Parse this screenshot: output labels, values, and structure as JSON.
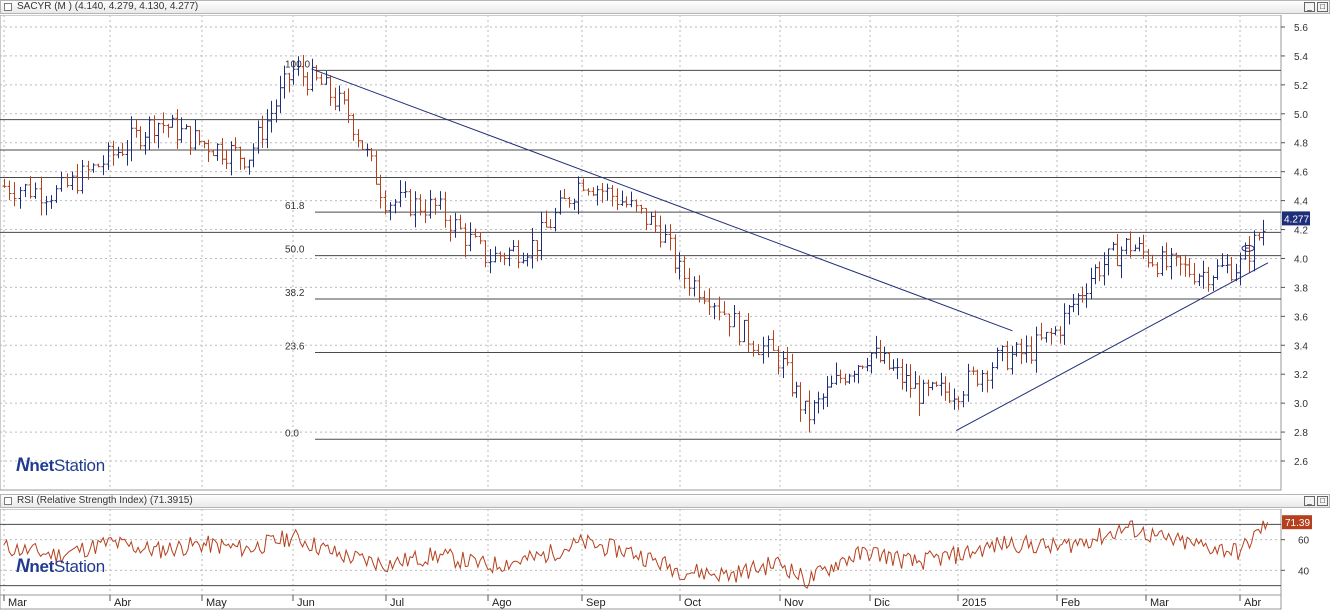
{
  "price_panel": {
    "title": "SACYR (M ) (4.140, 4.279, 4.130, 4.277)",
    "last_value": "4.277"
  },
  "rsi_panel": {
    "title": "RSI (Relative Strength Index) (71.3915)",
    "last_value": "71.39"
  },
  "branding": {
    "mark": "N",
    "bold": "net",
    "rest": "Station"
  },
  "window_buttons": {
    "minimize": "_",
    "maximize": "□"
  },
  "colors": {
    "up": "#1f2e7a",
    "down": "#b5401e",
    "line": "#1f2e7a",
    "rsi": "#b5401e",
    "grid": "#bbbbbb",
    "label_bg": "#1f2e7a"
  },
  "chart_data": [
    {
      "type": "bar",
      "subtype": "ohlc",
      "symbol": "SACYR",
      "ylim": [
        2.5,
        5.7
      ],
      "y_ticks": [
        2.6,
        2.8,
        3.0,
        3.2,
        3.4,
        3.6,
        3.8,
        4.0,
        4.2,
        4.4,
        4.6,
        4.8,
        5.0,
        5.2,
        5.4,
        5.6
      ],
      "months": [
        "Mar",
        "Abr",
        "May",
        "Jun",
        "Jul",
        "Ago",
        "Sep",
        "Oct",
        "Nov",
        "Dic",
        "2015",
        "Feb",
        "Mar",
        "Abr"
      ],
      "grid": true,
      "last_close": 4.277,
      "fibonacci": [
        {
          "label": "100.0",
          "value": 5.3
        },
        {
          "label": "61.8",
          "value": 4.32
        },
        {
          "label": "50.0",
          "value": 4.02
        },
        {
          "label": "38.2",
          "value": 3.72
        },
        {
          "label": "23.6",
          "value": 3.35
        },
        {
          "label": "0.0",
          "value": 2.75
        }
      ],
      "horizontal_levels": [
        4.96,
        4.75,
        4.56,
        4.18
      ],
      "trend_lines": [
        {
          "from": [
            "Jun",
            5.31
          ],
          "to": [
            "2015",
            3.5
          ]
        },
        {
          "from": [
            "Dic",
            2.81
          ],
          "to": [
            "Abr",
            3.97
          ]
        }
      ],
      "trend": [
        [
          0,
          4.5
        ],
        [
          0.5,
          4.45
        ],
        [
          1,
          4.7
        ],
        [
          1.5,
          4.95
        ],
        [
          2,
          4.8
        ],
        [
          2.5,
          4.7
        ],
        [
          3,
          5.3
        ],
        [
          3.3,
          5.2
        ],
        [
          3.6,
          5.0
        ],
        [
          4,
          4.4
        ],
        [
          4.5,
          4.35
        ],
        [
          5,
          4.0
        ],
        [
          5.5,
          4.1
        ],
        [
          6,
          4.55
        ],
        [
          6.4,
          4.4
        ],
        [
          6.8,
          4.2
        ],
        [
          7,
          3.9
        ],
        [
          7.3,
          3.75
        ],
        [
          7.6,
          3.5
        ],
        [
          8,
          3.3
        ],
        [
          8.3,
          2.9
        ],
        [
          8.7,
          3.2
        ],
        [
          9,
          3.35
        ],
        [
          9.3,
          3.2
        ],
        [
          9.6,
          3.05
        ],
        [
          10,
          3.1
        ],
        [
          10.4,
          3.3
        ],
        [
          10.7,
          3.35
        ],
        [
          11,
          3.5
        ],
        [
          11.4,
          3.9
        ],
        [
          11.8,
          4.1
        ],
        [
          12.2,
          3.95
        ],
        [
          12.6,
          3.9
        ],
        [
          13,
          3.95
        ],
        [
          13.3,
          4.25
        ]
      ]
    },
    {
      "type": "line",
      "name": "RSI",
      "ylim": [
        20,
        80
      ],
      "y_ticks": [
        40,
        60
      ],
      "last_value": 71.39,
      "trend": [
        [
          0,
          55
        ],
        [
          0.5,
          50
        ],
        [
          1,
          58
        ],
        [
          1.5,
          53
        ],
        [
          2,
          57
        ],
        [
          2.5,
          54
        ],
        [
          3,
          62
        ],
        [
          3.5,
          50
        ],
        [
          4,
          44
        ],
        [
          4.5,
          50
        ],
        [
          5,
          43
        ],
        [
          5.5,
          48
        ],
        [
          6,
          58
        ],
        [
          6.5,
          52
        ],
        [
          7,
          40
        ],
        [
          7.5,
          37
        ],
        [
          8,
          45
        ],
        [
          8.3,
          33
        ],
        [
          8.7,
          47
        ],
        [
          9,
          52
        ],
        [
          9.5,
          45
        ],
        [
          10,
          50
        ],
        [
          10.5,
          58
        ],
        [
          11,
          55
        ],
        [
          11.5,
          62
        ],
        [
          11.8,
          68
        ],
        [
          12.2,
          60
        ],
        [
          12.6,
          56
        ],
        [
          13,
          52
        ],
        [
          13.3,
          71.39
        ]
      ]
    }
  ]
}
